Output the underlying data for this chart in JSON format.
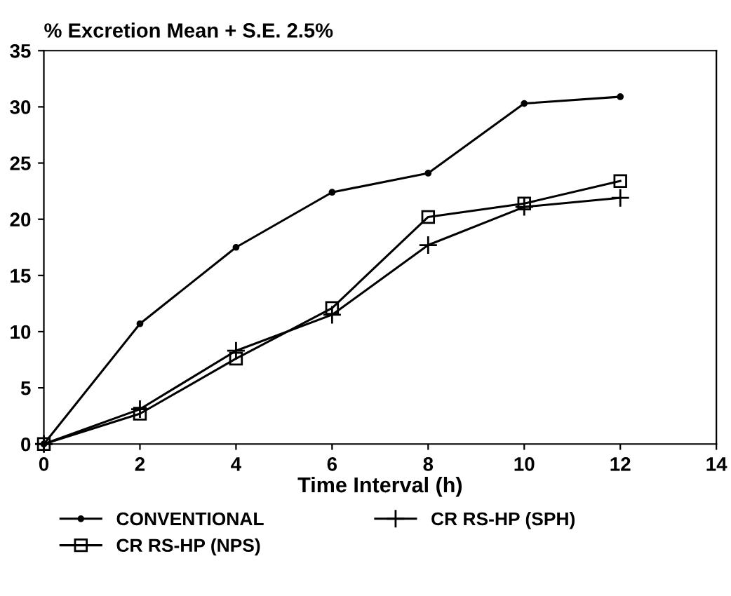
{
  "chart_data": {
    "type": "line",
    "title": "% Excretion Mean + S.E. 2.5%",
    "xlabel": "Time Interval (h)",
    "x": [
      0,
      2,
      4,
      6,
      8,
      10,
      12
    ],
    "series": [
      {
        "name": "CONVENTIONAL",
        "color": "#000000",
        "marker": "circle",
        "values": [
          0,
          10.7,
          17.5,
          22.4,
          24.1,
          30.3,
          30.9
        ]
      },
      {
        "name": "CR RS-HP (SPH)",
        "color": "#000000",
        "marker": "cross",
        "values": [
          0,
          3.1,
          8.3,
          11.5,
          17.7,
          21.1,
          21.9
        ]
      },
      {
        "name": "CR RS-HP (NPS)",
        "color": "#000000",
        "marker": "square",
        "values": [
          0,
          2.7,
          7.6,
          12.1,
          20.2,
          21.4,
          23.4
        ]
      }
    ],
    "xlim": [
      0,
      14
    ],
    "xticks": [
      0,
      2,
      4,
      6,
      8,
      10,
      12,
      14
    ],
    "ylim": [
      0,
      35
    ],
    "yticks": [
      0,
      5,
      10,
      15,
      20,
      25,
      30,
      35
    ],
    "grid": false,
    "legend": "bottom",
    "line_style": "solid"
  }
}
